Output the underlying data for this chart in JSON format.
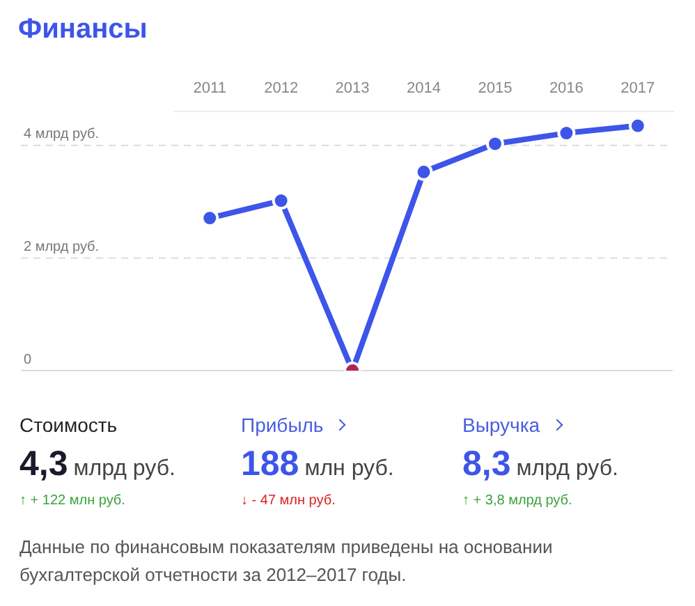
{
  "chart_data": {
    "type": "line",
    "title": "Финансы",
    "categories": [
      "2011",
      "2012",
      "2013",
      "2014",
      "2015",
      "2016",
      "2017"
    ],
    "series": [
      {
        "color": "#3d55e8",
        "colors": [
          "#3d55e8",
          "#3d55e8",
          "#b0245a",
          "#3d55e8",
          "#3d55e8",
          "#3d55e8",
          "#3d55e8"
        ],
        "values": [
          2.71,
          3.02,
          0,
          3.53,
          4.03,
          4.22,
          4.35
        ]
      }
    ],
    "ylim": [
      0,
      4.6
    ],
    "yticks": [
      0,
      {
        "value": 2,
        "label": "2 млрд руб."
      },
      {
        "value": 4,
        "label": "4 млрд руб."
      }
    ],
    "grid": "y",
    "marker": "circle",
    "line_style": "solid",
    "annotations": [
      "Стоимость",
      "4,3 млрд руб.",
      "↑ + 122 млн руб.",
      "Прибыль",
      "188 млн руб.",
      "↓ - 47 млн руб.",
      "Выручка",
      "8,3 млрд руб.",
      "↑ + 3,8 млрд руб.",
      "Данные по финансовым показателям приведены на основании бухгалтерской отчетности за 2012–2017 годы."
    ]
  }
}
